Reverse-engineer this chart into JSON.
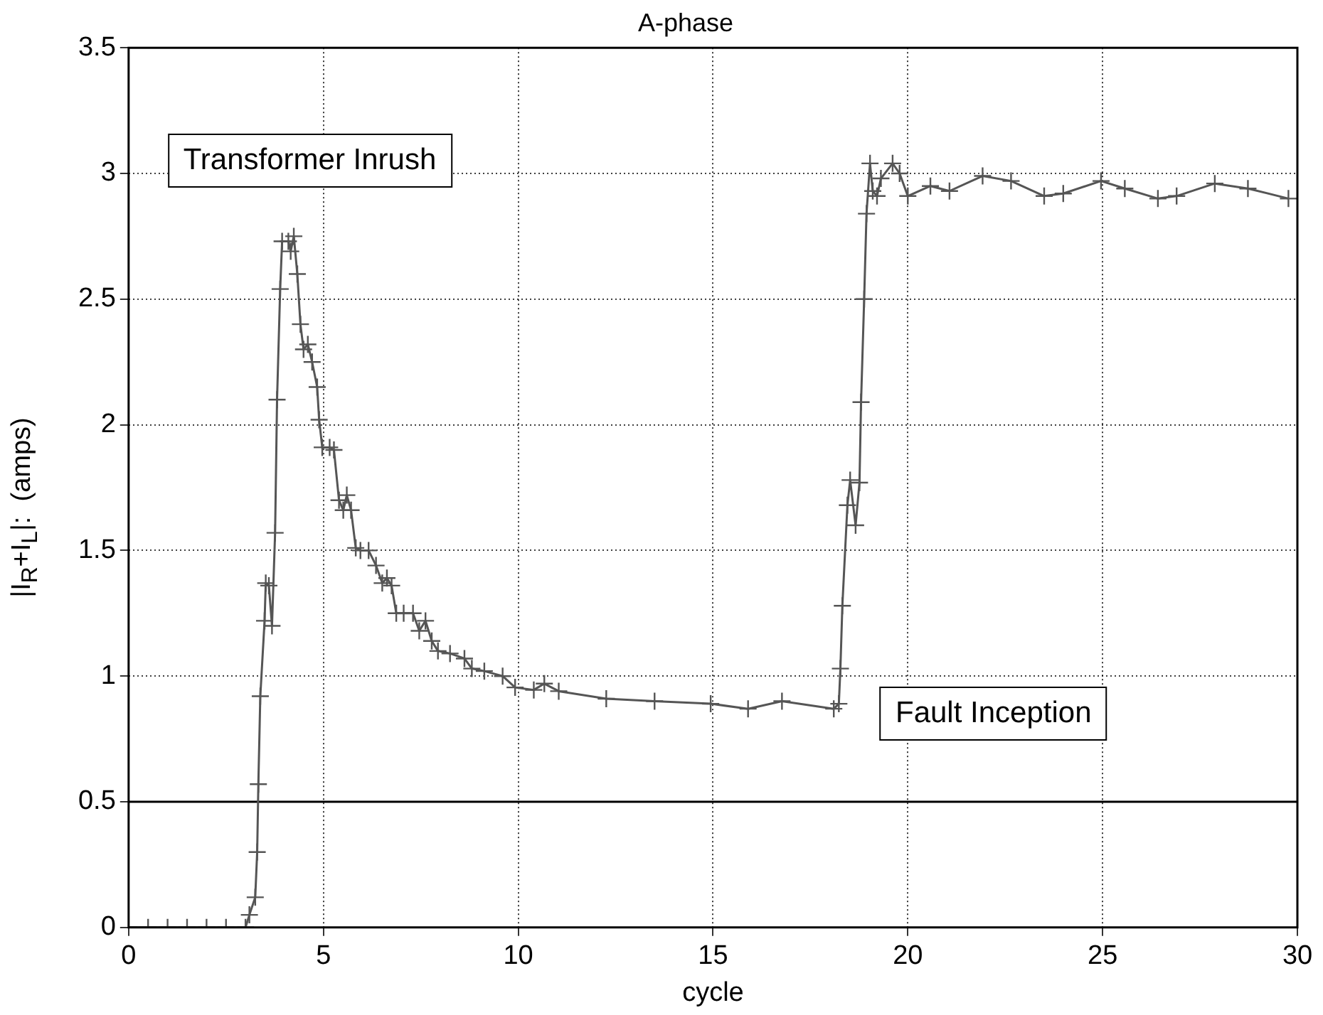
{
  "chart_data": {
    "type": "line",
    "title": "A-phase",
    "xlabel": "cycle",
    "ylabel": "|I$_{R}$+I$_{L}$|:  (amps)",
    "annotations": [
      "Transformer Inrush",
      "Fault Inception"
    ],
    "xlim": [
      0,
      30
    ],
    "xticks": [
      0,
      5,
      10,
      15,
      20,
      25,
      30
    ],
    "ylim": [
      0,
      3.5
    ],
    "yticks": [
      0,
      0.5,
      1,
      1.5,
      2,
      2.5,
      3,
      3.5
    ],
    "grid": true,
    "marker": "cross",
    "line_style": "solid",
    "ref_lines": [
      {
        "axis": "y",
        "value": 0.5,
        "color": "#000000"
      }
    ],
    "series": [
      {
        "color": "#555555",
        "x": [
          0,
          0.5,
          1,
          1.5,
          2,
          2.5,
          3,
          3.1,
          3.25,
          3.3,
          3.33,
          3.38,
          3.49,
          3.52,
          3.6,
          3.68,
          3.76,
          3.81,
          3.89,
          3.94,
          4.1,
          4.16,
          4.24,
          4.33,
          4.41,
          4.49,
          4.6,
          4.71,
          4.84,
          4.89,
          4.97,
          5.16,
          5.27,
          5.4,
          5.51,
          5.6,
          5.71,
          5.83,
          5.95,
          6.16,
          6.35,
          6.51,
          6.63,
          6.75,
          6.87,
          7.06,
          7.3,
          7.46,
          7.62,
          7.78,
          7.94,
          8.25,
          8.62,
          8.81,
          9.13,
          9.6,
          9.92,
          10.4,
          10.67,
          11.04,
          12.26,
          13.5,
          14.94,
          15.9,
          16.77,
          18.1,
          18.23,
          18.27,
          18.32,
          18.45,
          18.52,
          18.66,
          18.76,
          18.8,
          18.88,
          18.94,
          19.03,
          19.1,
          19.21,
          19.31,
          19.61,
          19.79,
          20,
          20.58,
          21.07,
          21.92,
          22.65,
          23.5,
          23.99,
          24.96,
          25.57,
          26.42,
          26.9,
          27.88,
          28.73,
          29.77
        ],
        "values": [
          0,
          0,
          0,
          0,
          0,
          0,
          0,
          0.05,
          0.12,
          0.3,
          0.57,
          0.92,
          1.22,
          1.37,
          1.36,
          1.2,
          1.57,
          2.1,
          2.54,
          2.73,
          2.73,
          2.69,
          2.75,
          2.6,
          2.4,
          2.3,
          2.32,
          2.25,
          2.15,
          2.02,
          1.91,
          1.91,
          1.9,
          1.7,
          1.66,
          1.72,
          1.66,
          1.51,
          1.5,
          1.5,
          1.44,
          1.37,
          1.39,
          1.36,
          1.25,
          1.25,
          1.25,
          1.18,
          1.22,
          1.14,
          1.1,
          1.09,
          1.07,
          1.03,
          1.02,
          1,
          0.955,
          0.945,
          0.97,
          0.94,
          0.91,
          0.9,
          0.89,
          0.87,
          0.9,
          0.87,
          0.89,
          1.03,
          1.28,
          1.68,
          1.78,
          1.6,
          1.77,
          2.09,
          2.5,
          2.84,
          3.04,
          2.93,
          2.91,
          2.98,
          3.04,
          3,
          2.91,
          2.95,
          2.93,
          2.99,
          2.97,
          2.91,
          2.92,
          2.97,
          2.94,
          2.9,
          2.91,
          2.96,
          2.94,
          2.9
        ]
      }
    ]
  }
}
